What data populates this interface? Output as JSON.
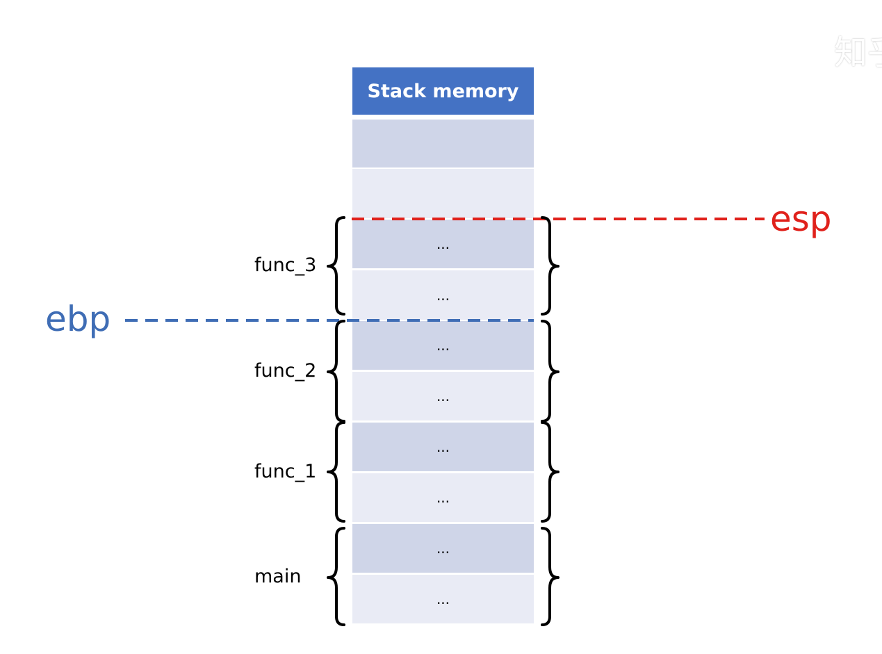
{
  "header": {
    "title": "Stack memory"
  },
  "cells": [
    "",
    "",
    "...",
    "...",
    "...",
    "...",
    "...",
    "...",
    "...",
    "..."
  ],
  "frames": [
    {
      "label": "func_3"
    },
    {
      "label": "func_2"
    },
    {
      "label": "func_1"
    },
    {
      "label": "main"
    }
  ],
  "registers": {
    "esp": {
      "label": "esp",
      "color": "#e0211b"
    },
    "ebp": {
      "label": "ebp",
      "color": "#3f6db5"
    }
  },
  "watermark": "知乎",
  "colors": {
    "header": "#4472c4",
    "cell_dark": "#cfd5e8",
    "cell_light": "#e9ebf5"
  }
}
